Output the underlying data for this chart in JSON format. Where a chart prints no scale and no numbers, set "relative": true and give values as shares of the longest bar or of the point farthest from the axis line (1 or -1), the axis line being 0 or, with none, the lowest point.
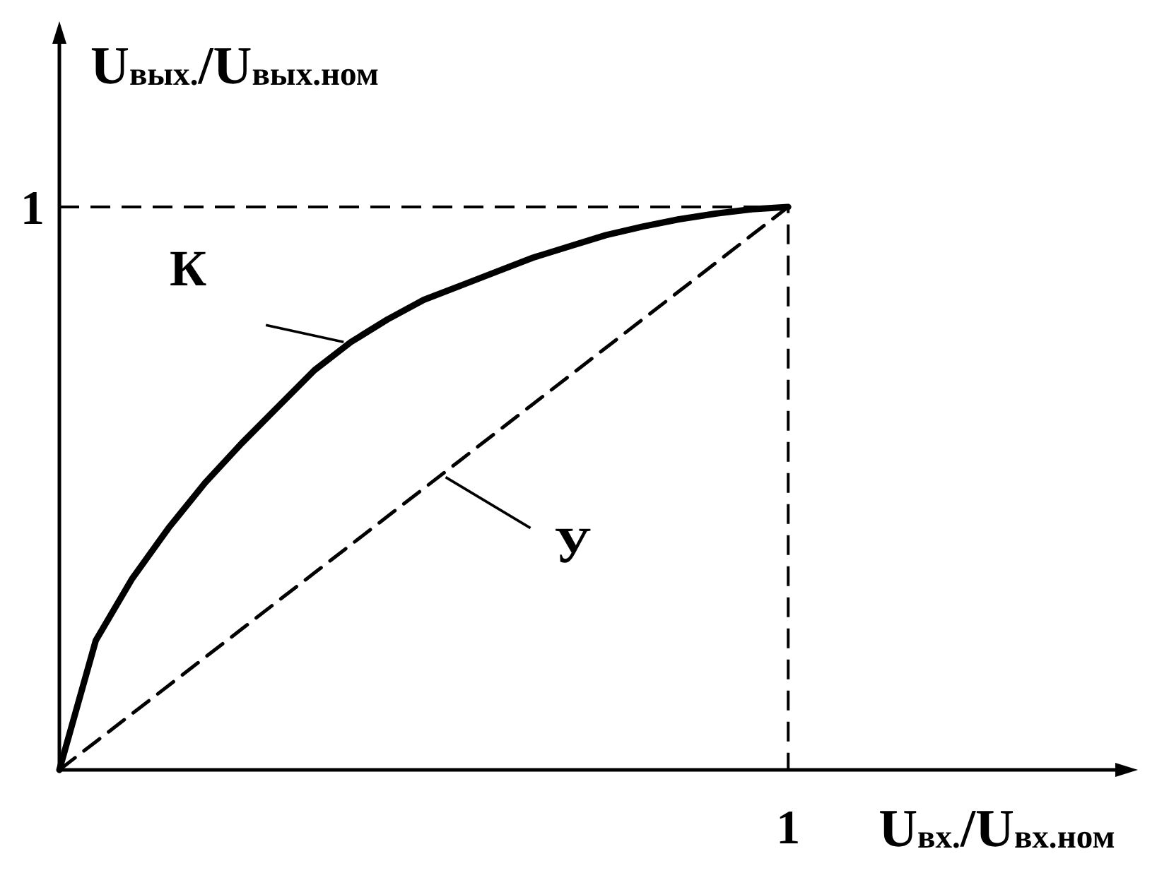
{
  "chart_data": {
    "type": "line",
    "relative": true,
    "xlabel": "U$_{вх.}$/U$_{вх.ном}$",
    "ylabel": "U$_{вых.}$/U$_{вых.ном}$",
    "annotations": [
      "1",
      "1"
    ],
    "categories": [
      null,
      null,
      null,
      null,
      null,
      null,
      null,
      null,
      null,
      null,
      null,
      null,
      null,
      null,
      null,
      null,
      null,
      null,
      null,
      null,
      null
    ],
    "series": [
      {
        "name": "К",
        "color": "#000000",
        "line_style": "solid",
        "values": [
          0,
          0.23,
          0.34,
          0.43,
          0.51,
          0.58,
          0.645,
          0.71,
          0.76,
          0.8,
          0.835,
          0.86,
          0.885,
          0.91,
          0.93,
          0.95,
          0.965,
          0.978,
          0.988,
          0.996,
          1
        ]
      },
      {
        "name": "У",
        "color": "#000000",
        "line_style": "dashed",
        "values": [
          0,
          0.05,
          0.1,
          0.15,
          0.2,
          0.25,
          0.3,
          0.35,
          0.4,
          0.45,
          0.5,
          0.55,
          0.6,
          0.65,
          0.7,
          0.75,
          0.8,
          0.85,
          0.9,
          0.95,
          1
        ]
      }
    ]
  }
}
